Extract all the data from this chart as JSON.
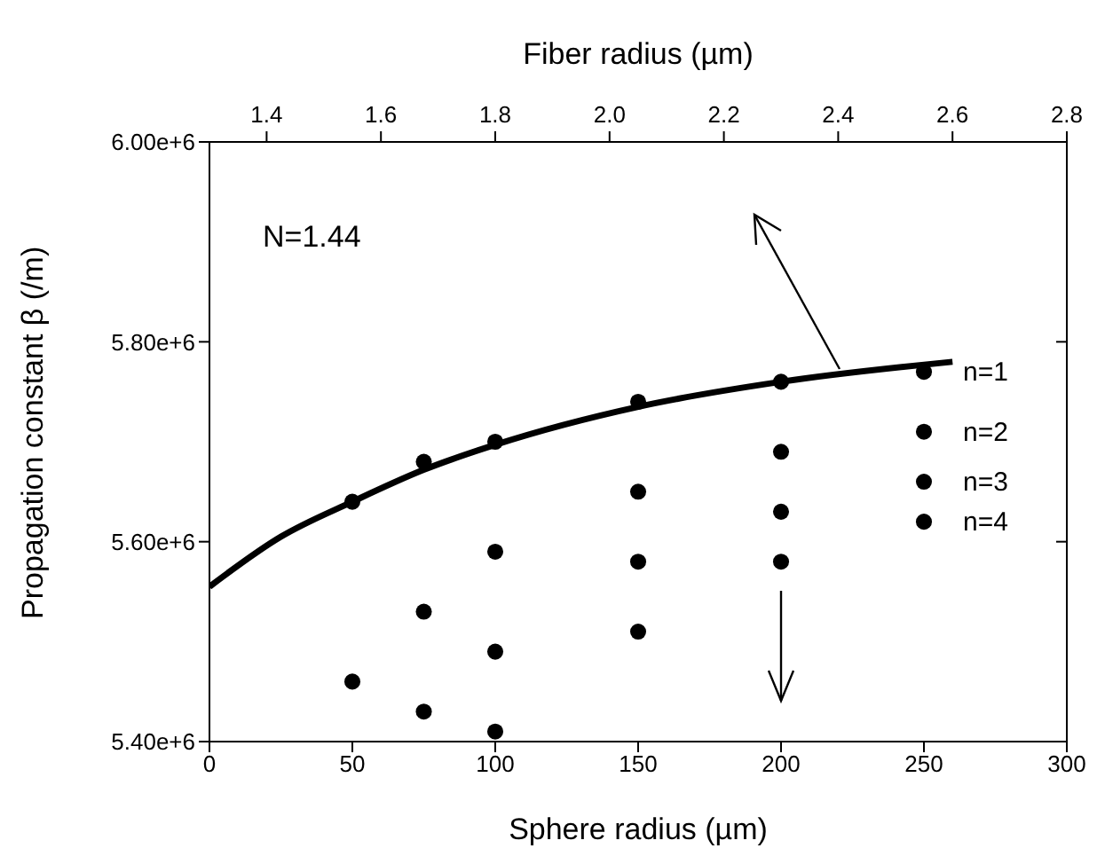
{
  "chart_data": {
    "type": "scatter",
    "xlabel": "Sphere radius (µm)",
    "x2label": "Fiber radius (µm)",
    "ylabel": "Propagation constant β (/m)",
    "annotations": [
      "N=1.44"
    ],
    "xlim": [
      0,
      300
    ],
    "xticks": [
      0,
      50,
      100,
      150,
      200,
      250,
      300
    ],
    "x2lim": [
      1.3,
      2.8
    ],
    "x2ticks": [
      1.4,
      1.6,
      1.8,
      {
        "value": 2.0,
        "label": "2.0"
      },
      2.2,
      2.4,
      2.6,
      2.8
    ],
    "ylim": [
      5400000,
      6000000
    ],
    "yticks": [
      {
        "value": 5400000,
        "label": "5.40e+6"
      },
      {
        "value": 5600000,
        "label": "5.60e+6"
      },
      {
        "value": 5800000,
        "label": "5.80e+6"
      },
      {
        "value": 6000000,
        "label": "6.00e+6"
      }
    ],
    "marker": "circle",
    "grid": false,
    "legend": false,
    "series": [
      {
        "type": "line",
        "marker": "none",
        "color": "#000000",
        "x": [
          0,
          25,
          50,
          75,
          100,
          150,
          200,
          260
        ],
        "values": [
          5555000,
          5605000,
          5640000,
          5672000,
          5697000,
          5735000,
          5760000,
          5780000
        ]
      },
      {
        "name": "n=1",
        "color": "#000000",
        "x": [
          50,
          75,
          100,
          150,
          200,
          250
        ],
        "values": [
          5640000,
          5680000,
          5700000,
          5740000,
          5760000,
          5770000
        ]
      },
      {
        "name": "n=2",
        "color": "#000000",
        "x": [
          50,
          75,
          100,
          150,
          200,
          250
        ],
        "values": [
          5460000,
          5530000,
          5590000,
          5650000,
          5690000,
          5710000
        ]
      },
      {
        "name": "n=3",
        "color": "#000000",
        "x": [
          75,
          100,
          150,
          200,
          250
        ],
        "values": [
          5430000,
          5490000,
          5580000,
          5630000,
          5660000
        ]
      },
      {
        "name": "n=4",
        "color": "#000000",
        "x": [
          100,
          150,
          200,
          250
        ],
        "values": [
          5410000,
          5510000,
          5580000,
          5620000
        ]
      }
    ]
  }
}
